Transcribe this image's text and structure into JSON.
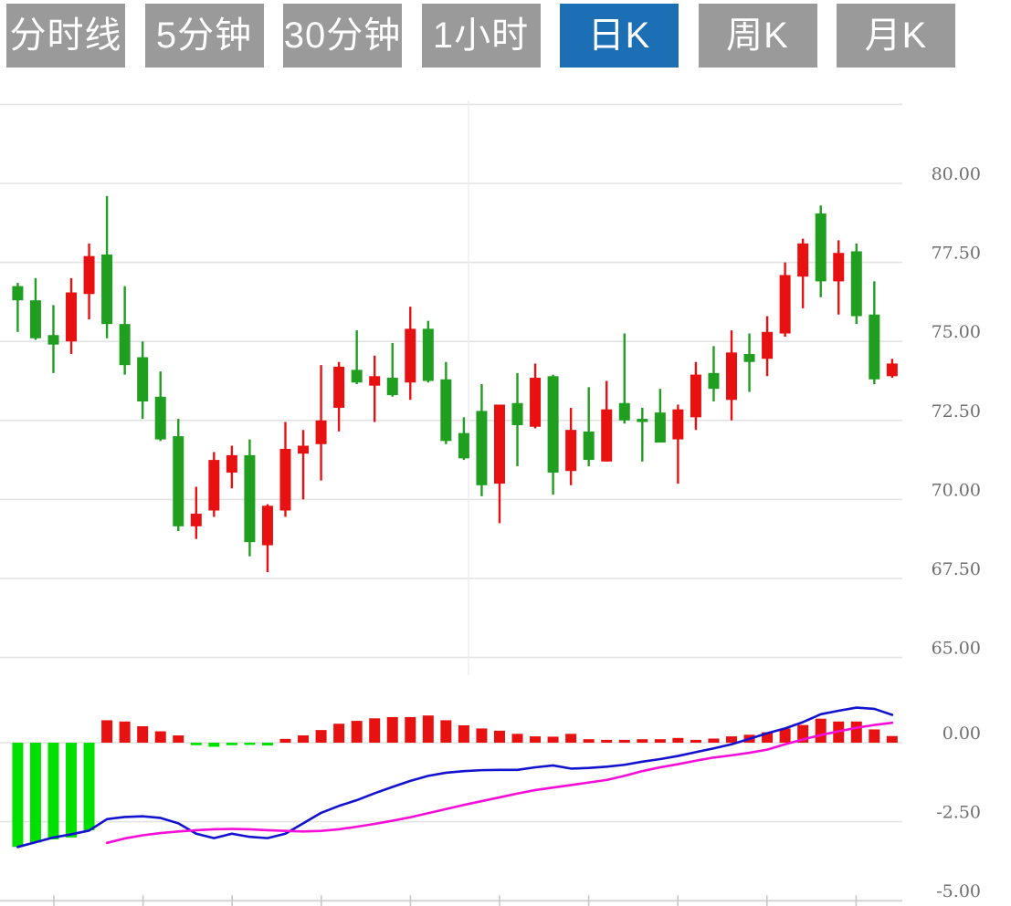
{
  "toolbar": {
    "buttons": [
      {
        "label": "分时线",
        "active": false
      },
      {
        "label": "5分钟",
        "active": false
      },
      {
        "label": "30分钟",
        "active": false
      },
      {
        "label": "1小时",
        "active": false
      },
      {
        "label": "日K",
        "active": true
      },
      {
        "label": "周K",
        "active": false
      },
      {
        "label": "月K",
        "active": false
      }
    ]
  },
  "colors": {
    "candle_up": "#e81111",
    "candle_down": "#1f9e1f",
    "macd_bar_up": "#e81111",
    "macd_bar_down": "#00e000",
    "dif_line": "#1212cf",
    "dea_line": "#f50dd8",
    "grid": "#e3e3e3",
    "axis_line": "#d6d6d6",
    "axis_label": "#6e6e6e",
    "button_bg": "#9a9a9a",
    "button_active_bg": "#1c6fb5",
    "button_text": "#ffffff"
  },
  "chart_data": [
    {
      "type": "candlestick",
      "panel": "price",
      "title": "",
      "xlabel": "",
      "ylabel": "",
      "grid": true,
      "legend": "none",
      "ylim": [
        65.0,
        82.5
      ],
      "grid_values": [
        82.5,
        80.0,
        77.5,
        75.0,
        72.5,
        70.0,
        67.5,
        65.0
      ],
      "y_ticks": [
        {
          "label": "80.00",
          "value": 80.0
        },
        {
          "label": "77.50",
          "value": 77.5
        },
        {
          "label": "75.00",
          "value": 75.0
        },
        {
          "label": "72.50",
          "value": 72.5
        },
        {
          "label": "70.00",
          "value": 70.0
        },
        {
          "label": "67.50",
          "value": 67.5
        },
        {
          "label": "65.00",
          "value": 65.0
        }
      ],
      "candles": [
        {
          "o": 76.75,
          "h": 76.85,
          "l": 75.3,
          "c": 76.3
        },
        {
          "o": 76.3,
          "h": 77.0,
          "l": 75.05,
          "c": 75.1
        },
        {
          "o": 75.2,
          "h": 76.15,
          "l": 74.0,
          "c": 74.9
        },
        {
          "o": 75.0,
          "h": 77.0,
          "l": 74.6,
          "c": 76.55
        },
        {
          "o": 76.5,
          "h": 78.1,
          "l": 75.7,
          "c": 77.7
        },
        {
          "o": 77.75,
          "h": 79.6,
          "l": 75.1,
          "c": 75.55
        },
        {
          "o": 75.55,
          "h": 76.75,
          "l": 73.95,
          "c": 74.25
        },
        {
          "o": 74.5,
          "h": 75.0,
          "l": 72.55,
          "c": 73.1
        },
        {
          "o": 73.25,
          "h": 74.05,
          "l": 71.85,
          "c": 71.9
        },
        {
          "o": 72.0,
          "h": 72.55,
          "l": 69.0,
          "c": 69.15
        },
        {
          "o": 69.15,
          "h": 70.4,
          "l": 68.75,
          "c": 69.55
        },
        {
          "o": 69.65,
          "h": 71.5,
          "l": 69.45,
          "c": 71.25
        },
        {
          "o": 70.85,
          "h": 71.7,
          "l": 70.35,
          "c": 71.4
        },
        {
          "o": 71.4,
          "h": 71.9,
          "l": 68.2,
          "c": 68.65
        },
        {
          "o": 68.55,
          "h": 69.85,
          "l": 67.7,
          "c": 69.8
        },
        {
          "o": 69.65,
          "h": 72.45,
          "l": 69.45,
          "c": 71.6
        },
        {
          "o": 71.45,
          "h": 72.2,
          "l": 70.0,
          "c": 71.7
        },
        {
          "o": 71.75,
          "h": 74.25,
          "l": 70.6,
          "c": 72.5
        },
        {
          "o": 72.9,
          "h": 74.35,
          "l": 72.15,
          "c": 74.2
        },
        {
          "o": 74.1,
          "h": 75.35,
          "l": 73.65,
          "c": 73.7
        },
        {
          "o": 73.6,
          "h": 74.55,
          "l": 72.45,
          "c": 73.9
        },
        {
          "o": 73.85,
          "h": 74.95,
          "l": 73.25,
          "c": 73.3
        },
        {
          "o": 73.7,
          "h": 76.1,
          "l": 73.15,
          "c": 75.4
        },
        {
          "o": 75.4,
          "h": 75.65,
          "l": 73.7,
          "c": 73.75
        },
        {
          "o": 73.8,
          "h": 74.35,
          "l": 71.75,
          "c": 71.85
        },
        {
          "o": 72.1,
          "h": 72.6,
          "l": 71.25,
          "c": 71.3
        },
        {
          "o": 72.8,
          "h": 73.65,
          "l": 70.1,
          "c": 70.45
        },
        {
          "o": 70.5,
          "h": 73.0,
          "l": 69.25,
          "c": 73.0
        },
        {
          "o": 73.05,
          "h": 74.0,
          "l": 71.05,
          "c": 72.35
        },
        {
          "o": 72.3,
          "h": 74.3,
          "l": 72.25,
          "c": 73.85
        },
        {
          "o": 73.9,
          "h": 73.95,
          "l": 70.15,
          "c": 70.85
        },
        {
          "o": 70.9,
          "h": 72.9,
          "l": 70.45,
          "c": 72.2
        },
        {
          "o": 72.15,
          "h": 73.55,
          "l": 71.05,
          "c": 71.25
        },
        {
          "o": 71.2,
          "h": 73.75,
          "l": 71.2,
          "c": 72.85
        },
        {
          "o": 73.05,
          "h": 75.25,
          "l": 72.4,
          "c": 72.5
        },
        {
          "o": 72.55,
          "h": 72.9,
          "l": 71.2,
          "c": 72.45
        },
        {
          "o": 72.75,
          "h": 73.5,
          "l": 71.8,
          "c": 71.8
        },
        {
          "o": 71.9,
          "h": 73.0,
          "l": 70.5,
          "c": 72.85
        },
        {
          "o": 72.6,
          "h": 74.35,
          "l": 72.2,
          "c": 73.95
        },
        {
          "o": 74.0,
          "h": 74.85,
          "l": 73.1,
          "c": 73.5
        },
        {
          "o": 73.15,
          "h": 75.35,
          "l": 72.5,
          "c": 74.65
        },
        {
          "o": 74.6,
          "h": 75.25,
          "l": 73.4,
          "c": 74.35
        },
        {
          "o": 74.45,
          "h": 75.8,
          "l": 73.9,
          "c": 75.3
        },
        {
          "o": 75.25,
          "h": 77.5,
          "l": 75.15,
          "c": 77.1
        },
        {
          "o": 77.05,
          "h": 78.25,
          "l": 76.05,
          "c": 78.1
        },
        {
          "o": 79.05,
          "h": 79.3,
          "l": 76.4,
          "c": 76.9
        },
        {
          "o": 76.9,
          "h": 78.2,
          "l": 75.85,
          "c": 77.8
        },
        {
          "o": 77.85,
          "h": 78.1,
          "l": 75.55,
          "c": 75.8
        },
        {
          "o": 75.85,
          "h": 76.9,
          "l": 73.65,
          "c": 73.8
        },
        {
          "o": 73.9,
          "h": 74.45,
          "l": 73.85,
          "c": 74.3
        }
      ]
    },
    {
      "type": "bar",
      "panel": "macd",
      "grid": true,
      "legend": "none",
      "ylim": [
        -5.0,
        1.3
      ],
      "grid_values": [
        0.0,
        -2.5
      ],
      "y_ticks": [
        {
          "label": "0.00",
          "value": 0.0
        },
        {
          "label": "-2.50",
          "value": -2.5
        },
        {
          "label": "-5.00",
          "value": -5.0
        }
      ],
      "histogram": [
        -3.3,
        -3.16,
        -3.06,
        -3.0,
        -2.77,
        0.71,
        0.67,
        0.52,
        0.36,
        0.23,
        -0.08,
        -0.13,
        -0.08,
        -0.07,
        -0.09,
        0.12,
        0.23,
        0.4,
        0.6,
        0.69,
        0.77,
        0.81,
        0.81,
        0.86,
        0.71,
        0.55,
        0.45,
        0.38,
        0.28,
        0.2,
        0.19,
        0.28,
        0.11,
        0.09,
        0.09,
        0.11,
        0.11,
        0.15,
        0.09,
        0.13,
        0.2,
        0.25,
        0.33,
        0.45,
        0.56,
        0.76,
        0.67,
        0.67,
        0.42,
        0.21
      ],
      "series": [
        {
          "name": "DIF",
          "values": [
            -3.3,
            -3.15,
            -3.0,
            -2.9,
            -2.78,
            -2.42,
            -2.35,
            -2.33,
            -2.38,
            -2.55,
            -2.88,
            -3.02,
            -2.88,
            -2.98,
            -3.02,
            -2.88,
            -2.55,
            -2.22,
            -2.0,
            -1.82,
            -1.6,
            -1.4,
            -1.21,
            -1.05,
            -0.95,
            -0.9,
            -0.87,
            -0.86,
            -0.86,
            -0.78,
            -0.72,
            -0.82,
            -0.8,
            -0.76,
            -0.7,
            -0.6,
            -0.52,
            -0.42,
            -0.3,
            -0.18,
            -0.05,
            0.12,
            0.3,
            0.45,
            0.65,
            0.9,
            1.01,
            1.11,
            1.07,
            0.88
          ]
        },
        {
          "name": "DEA",
          "values": [
            null,
            null,
            null,
            null,
            null,
            -3.17,
            -3.03,
            -2.93,
            -2.86,
            -2.81,
            -2.77,
            -2.74,
            -2.73,
            -2.74,
            -2.77,
            -2.79,
            -2.81,
            -2.79,
            -2.74,
            -2.66,
            -2.57,
            -2.47,
            -2.36,
            -2.23,
            -2.1,
            -1.97,
            -1.85,
            -1.73,
            -1.61,
            -1.5,
            -1.42,
            -1.34,
            -1.26,
            -1.18,
            -1.05,
            -0.9,
            -0.78,
            -0.68,
            -0.57,
            -0.47,
            -0.4,
            -0.32,
            -0.22,
            -0.05,
            0.1,
            0.24,
            0.36,
            0.47,
            0.56,
            0.63
          ]
        }
      ]
    }
  ]
}
